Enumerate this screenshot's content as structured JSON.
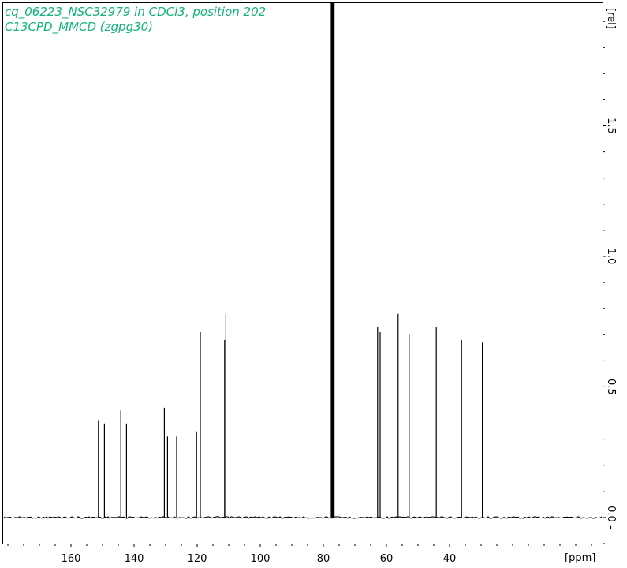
{
  "chart_data": {
    "type": "line",
    "title_line1": "cq_06223_NSC32979 in CDCl3, position 202",
    "title_line2": "C13CPD_MMCD (zgpg30)",
    "xlabel": "[ppm]",
    "ylabel": "[rel]",
    "x_reversed": true,
    "xlim": [
      181.5,
      -8.5
    ],
    "ylim": [
      -0.1,
      1.97
    ],
    "x_ticks": [
      160,
      140,
      120,
      100,
      80,
      60,
      40
    ],
    "y_ticks": [
      {
        "value": 0.0,
        "label": "0.0 -"
      },
      {
        "value": 0.5,
        "label": "0.5"
      },
      {
        "value": 1.0,
        "label": "1.0"
      },
      {
        "value": 1.5,
        "label": "1.5"
      }
    ],
    "grid": false,
    "legend": "none",
    "series": [
      {
        "color": "#000000",
        "peaks": [
          {
            "x": 151.3,
            "y": 0.37
          },
          {
            "x": 149.4,
            "y": 0.36
          },
          {
            "x": 144.2,
            "y": 0.41
          },
          {
            "x": 142.4,
            "y": 0.36
          },
          {
            "x": 130.4,
            "y": 0.42
          },
          {
            "x": 129.4,
            "y": 0.31
          },
          {
            "x": 126.5,
            "y": 0.31
          },
          {
            "x": 120.2,
            "y": 0.33
          },
          {
            "x": 119.0,
            "y": 0.71
          },
          {
            "x": 111.3,
            "y": 0.68
          },
          {
            "x": 110.9,
            "y": 0.78
          },
          {
            "x": 77.4,
            "y": 1.97
          },
          {
            "x": 77.0,
            "y": 1.97
          },
          {
            "x": 76.7,
            "y": 1.97
          },
          {
            "x": 62.8,
            "y": 0.73
          },
          {
            "x": 62.0,
            "y": 0.71
          },
          {
            "x": 56.3,
            "y": 0.78
          },
          {
            "x": 52.8,
            "y": 0.7
          },
          {
            "x": 44.2,
            "y": 0.73
          },
          {
            "x": 36.2,
            "y": 0.68
          },
          {
            "x": 29.6,
            "y": 0.67
          }
        ]
      }
    ]
  }
}
